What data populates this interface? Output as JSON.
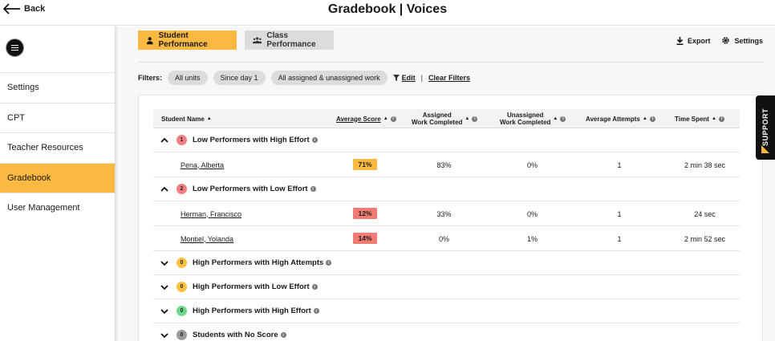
{
  "header": {
    "back_label": "Back",
    "title": "Gradebook | Voices"
  },
  "sidebar": {
    "items": [
      {
        "label": "Settings",
        "active": false
      },
      {
        "label": "CPT",
        "active": false
      },
      {
        "label": "Teacher Resources",
        "active": false
      },
      {
        "label": "Gradebook",
        "active": true
      },
      {
        "label": "User Management",
        "active": false
      }
    ]
  },
  "tabs": {
    "student": "Student Performance",
    "class": "Class Performance"
  },
  "actions": {
    "export": "Export",
    "settings": "Settings"
  },
  "filters": {
    "label": "Filters:",
    "pills": [
      "All units",
      "Since day 1",
      "All assigned & unassigned work"
    ],
    "edit": "Edit",
    "separator": "|",
    "clear": "Clear Filters"
  },
  "table": {
    "columns": {
      "student_name": "Student Name",
      "average_score": "Average Score",
      "assigned_1": "Assigned",
      "assigned_2": "Work Completed",
      "unassigned_1": "Unassigned",
      "unassigned_2": "Work Completed",
      "attempts": "Average Attempts",
      "time": "Time Spent"
    },
    "sort_glyph": "▲",
    "info_glyph": "i",
    "groups": [
      {
        "label": "Low Performers with High Effort",
        "count": "1",
        "badge_color": "#f08080",
        "expanded": true,
        "students": [
          {
            "name": "Pena, Alberta",
            "score": "71%",
            "score_color": "#fbb941",
            "assigned": "83%",
            "unassigned": "0%",
            "attempts": "1",
            "time": "2 min 38 sec"
          }
        ]
      },
      {
        "label": "Low Performers with Low Effort",
        "count": "2",
        "badge_color": "#f08080",
        "expanded": true,
        "students": [
          {
            "name": "Herman, Francisco",
            "score": "12%",
            "score_color": "#f27b73",
            "assigned": "33%",
            "unassigned": "0%",
            "attempts": "1",
            "time": "24 sec"
          },
          {
            "name": "Montiel, Yolanda",
            "score": "14%",
            "score_color": "#f27b73",
            "assigned": "0%",
            "unassigned": "1%",
            "attempts": "1",
            "time": "2 min 52 sec"
          }
        ]
      },
      {
        "label": "High Performers with High Attempts",
        "count": "0",
        "badge_color": "#fbc13f",
        "expanded": false,
        "students": []
      },
      {
        "label": "High Performers with Low Effort",
        "count": "0",
        "badge_color": "#fbc13f",
        "expanded": false,
        "students": []
      },
      {
        "label": "High Performers with High Effort",
        "count": "0",
        "badge_color": "#6fd88c",
        "expanded": false,
        "students": []
      },
      {
        "label": "Students with No Score",
        "count": "0",
        "badge_color": "#9a9a9a",
        "expanded": false,
        "students": []
      }
    ]
  },
  "support": {
    "label": "SUPPORT"
  },
  "colors": {
    "accent": "#fbb941"
  }
}
